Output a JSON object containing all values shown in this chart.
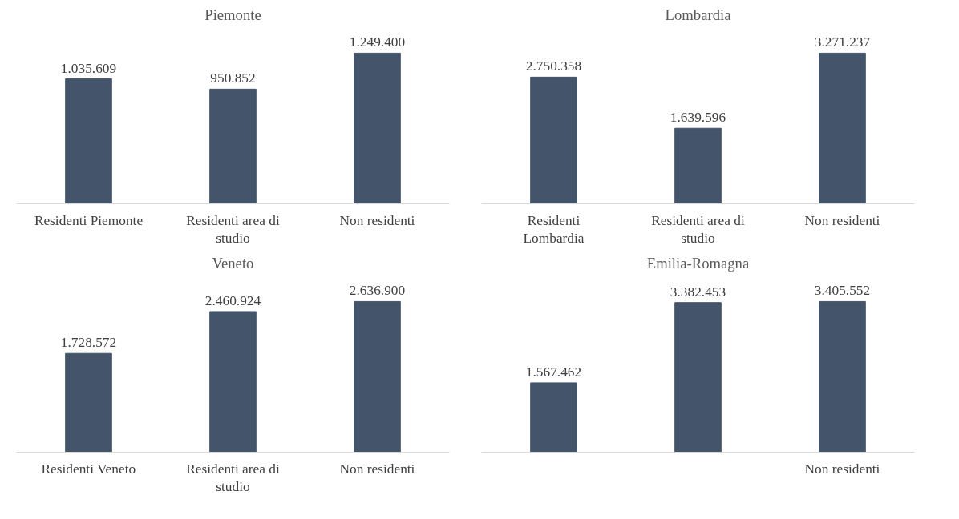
{
  "chart_data": [
    {
      "type": "bar",
      "title": "Piemonte",
      "categories": [
        "Residenti Piemonte",
        "Residenti area di studio",
        "Non residenti"
      ],
      "values": [
        1035609,
        950852,
        1249400
      ],
      "value_labels": [
        "1.035.609",
        "950.852",
        "1.249.400"
      ],
      "color": "#44546a",
      "tick_labels": "x"
    },
    {
      "type": "bar",
      "title": "Lombardia",
      "categories": [
        "Residenti Lombardia",
        "Residenti area di studio",
        "Non residenti"
      ],
      "values": [
        2750358,
        1639596,
        3271237
      ],
      "value_labels": [
        "2.750.358",
        "1.639.596",
        "3.271.237"
      ],
      "color": "#44546a",
      "tick_labels": "x"
    },
    {
      "type": "bar",
      "title": "Veneto",
      "categories": [
        "Residenti Veneto",
        "Residenti area di studio",
        "Non residenti"
      ],
      "values": [
        1728572,
        2460924,
        2636900
      ],
      "value_labels": [
        "1.728.572",
        "2.460.924",
        "2.636.900"
      ],
      "color": "#44546a",
      "tick_labels": "x"
    },
    {
      "type": "bar",
      "title": "Emilia-Romagna",
      "categories": [
        null,
        null,
        "Non residenti"
      ],
      "values": [
        1567462,
        3382453,
        3405552
      ],
      "value_labels": [
        "1.567.462",
        "3.382.453",
        "3.405.552"
      ],
      "color": "#44546a",
      "tick_labels": "x"
    }
  ]
}
